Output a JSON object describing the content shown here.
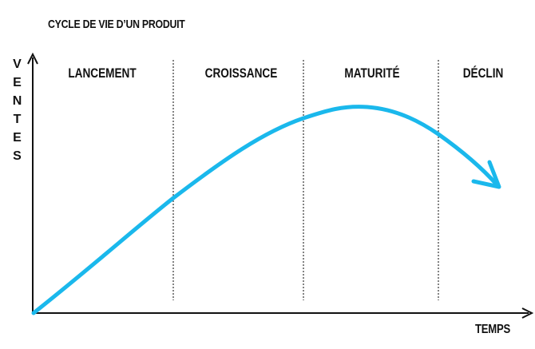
{
  "header": {
    "title": "CYCLE DE VIE D’UN PRODUIT"
  },
  "axes": {
    "y_label": "VENTES",
    "x_label": "TEMPS"
  },
  "phases": [
    {
      "label": "LANCEMENT"
    },
    {
      "label": "CROISSANCE"
    },
    {
      "label": "MATURITÉ"
    },
    {
      "label": "DÉCLIN"
    }
  ]
}
